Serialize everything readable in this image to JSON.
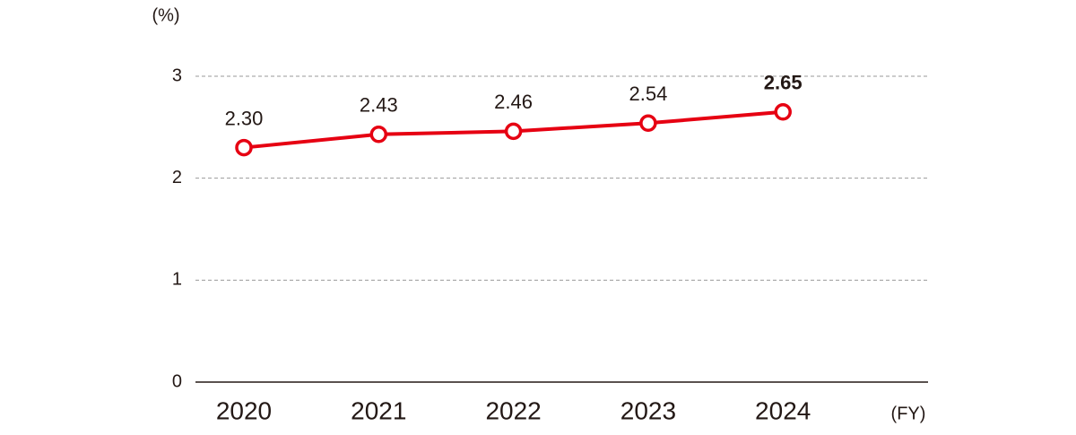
{
  "chart_data": {
    "type": "line",
    "y_unit": "(%)",
    "x_unit": "(FY)",
    "categories": [
      "2020",
      "2021",
      "2022",
      "2023",
      "2024"
    ],
    "series": [
      {
        "color": "#e60012",
        "values": [
          2.3,
          2.43,
          2.46,
          2.54,
          2.65
        ],
        "value_labels": [
          "2.30",
          "2.43",
          "2.46",
          "2.54",
          "2.65"
        ]
      }
    ],
    "ylim": [
      0,
      3
    ],
    "yticks": [
      0,
      1,
      2,
      3
    ],
    "grid": true
  }
}
